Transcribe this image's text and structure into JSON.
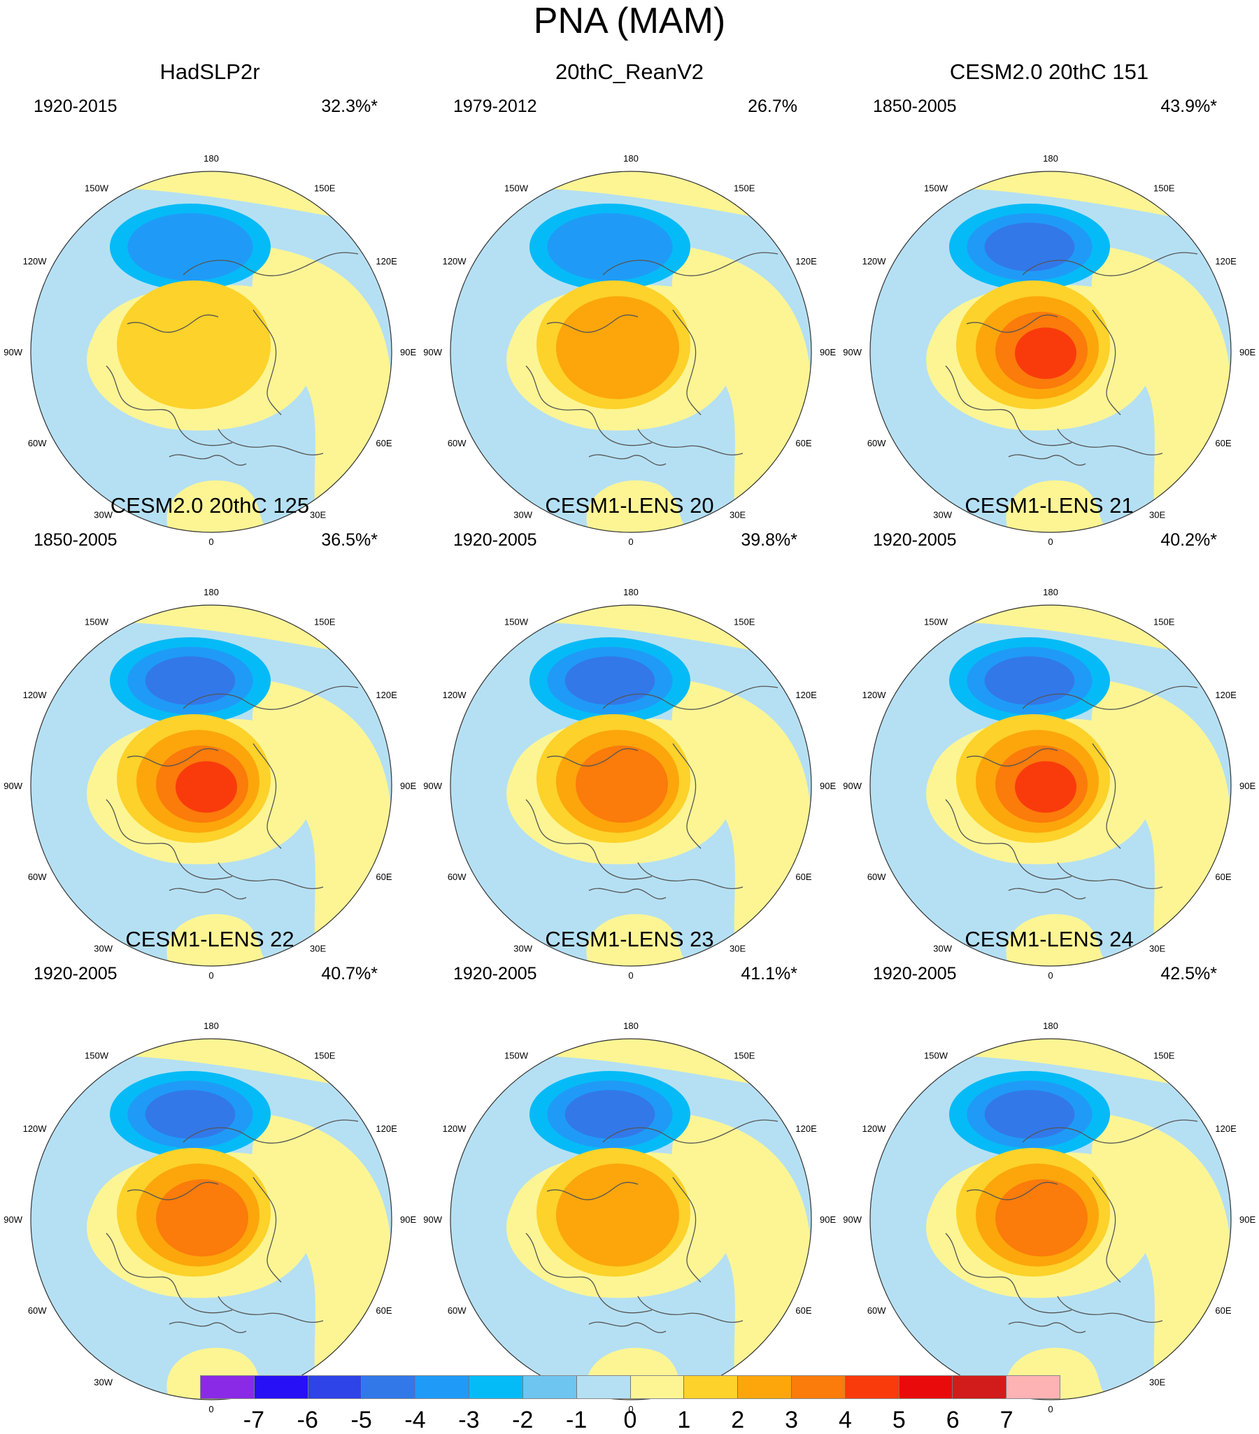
{
  "title": "PNA (MAM)",
  "colors": {
    "c_neg7": "#8a2ae6",
    "c_neg6": "#2710f5",
    "c_neg5": "#2e44e8",
    "c_neg4": "#3278e9",
    "c_neg3": "#1f9bf7",
    "c_neg2": "#05bbf7",
    "c_neg1": "#6ec5ef",
    "c_0": "#b5e0f3",
    "c_1": "#fdf594",
    "c_2": "#fdd22a",
    "c_3": "#fca60b",
    "c_4": "#fb7b0b",
    "c_5": "#f93b0c",
    "c_6": "#e90b0b",
    "c_7": "#d21b1b",
    "c_over": "#fdb2b4",
    "coast": "#555555"
  },
  "colorbar": {
    "labels": [
      "-7",
      "-6",
      "-5",
      "-4",
      "-3",
      "-2",
      "-1",
      "0",
      "1",
      "2",
      "3",
      "4",
      "5",
      "6",
      "7"
    ],
    "box_colors": [
      "#8a2ae6",
      "#2710f5",
      "#2e44e8",
      "#3278e9",
      "#1f9bf7",
      "#05bbf7",
      "#6ec5ef",
      "#b5e0f3",
      "#fdf594",
      "#fdd22a",
      "#fca60b",
      "#fb7b0b",
      "#f93b0c",
      "#e90b0b",
      "#d21b1b",
      "#fdb2b4"
    ]
  },
  "lon_labels": {
    "top": "180",
    "bottom": "0",
    "upper_left": "150W",
    "upper_right": "150E",
    "mid_upper_left": "120W",
    "mid_upper_right": "120E",
    "left": "90W",
    "right": "90E",
    "mid_lower_left": "60W",
    "mid_lower_right": "60E",
    "lower_left": "30W",
    "lower_right": "30E"
  },
  "panels": [
    {
      "id": "hadslp2r",
      "title": "HadSLP2r",
      "period": "1920-2015",
      "variance": "32.3%*",
      "low_center": -2.2,
      "high_center": 1.2
    },
    {
      "id": "20thc-reanv2",
      "title": "20thC_ReanV2",
      "period": "1979-2012",
      "variance": "26.7%",
      "low_center": -2.6,
      "high_center": 2.2
    },
    {
      "id": "cesm2-151",
      "title": "CESM2.0 20thC 151",
      "period": "1850-2005",
      "variance": "43.9%*",
      "low_center": -3.6,
      "high_center": 4.4
    },
    {
      "id": "cesm2-125",
      "title": "CESM2.0 20thC 125",
      "period": "1850-2005",
      "variance": "36.5%*",
      "low_center": -3.4,
      "high_center": 4.8
    },
    {
      "id": "lens-20",
      "title": "CESM1-LENS 20",
      "period": "1920-2005",
      "variance": "39.8%*",
      "low_center": -3.6,
      "high_center": 3.6
    },
    {
      "id": "lens-21",
      "title": "CESM1-LENS 21",
      "period": "1920-2005",
      "variance": "40.2%*",
      "low_center": -3.5,
      "high_center": 4.3
    },
    {
      "id": "lens-22",
      "title": "CESM1-LENS 22",
      "period": "1920-2005",
      "variance": "40.7%*",
      "low_center": -3.7,
      "high_center": 3.4
    },
    {
      "id": "lens-23",
      "title": "CESM1-LENS 23",
      "period": "1920-2005",
      "variance": "41.1%*",
      "low_center": -3.7,
      "high_center": 2.8
    },
    {
      "id": "lens-24",
      "title": "CESM1-LENS 24",
      "period": "1920-2005",
      "variance": "42.5%*",
      "low_center": -3.5,
      "high_center": 3.6
    }
  ]
}
